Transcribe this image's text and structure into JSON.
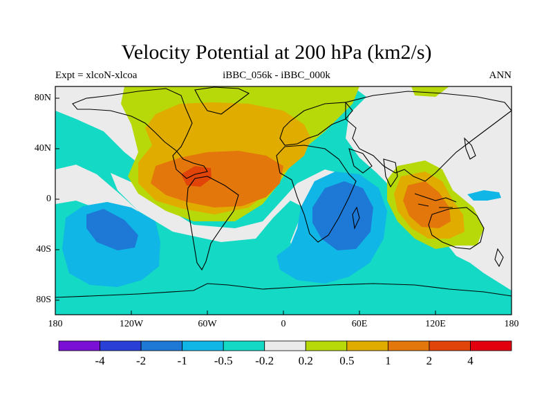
{
  "title": "Velocity Potential at 200 hPa (km2/s)",
  "subtitle_left": "Expt = xlcoN-xlcoa",
  "subtitle_center": "iBBC_056k - iBBC_000k",
  "subtitle_right": "ANN",
  "lat_labels": [
    "80N",
    "40N",
    "0",
    "40S",
    "80S"
  ],
  "lon_labels": [
    "180",
    "120W",
    "60W",
    "0",
    "60E",
    "120E",
    "180"
  ],
  "colorbar": {
    "colors": [
      "#7a0fd6",
      "#2a3fd6",
      "#1e79d6",
      "#10b6e6",
      "#14d9c4",
      "#ebebeb",
      "#b7d90a",
      "#e1ac00",
      "#e3770b",
      "#e04409",
      "#e2000f"
    ],
    "labels": [
      "-4",
      "-2",
      "-1",
      "-0.5",
      "-0.2",
      "0.2",
      "0.5",
      "1",
      "2",
      "4"
    ]
  },
  "map_layers": {
    "background": "#14d9c4",
    "field_colors": {
      "neutral": "#ebebeb",
      "pos_weak": "#b7d90a",
      "pos_mid": "#e1ac00",
      "pos_strong": "#e3770b",
      "pos_max": "#e04409",
      "neg_weak": "#14d9c4",
      "neg_mid": "#10b6e6",
      "neg_strong": "#1e79d6"
    }
  }
}
